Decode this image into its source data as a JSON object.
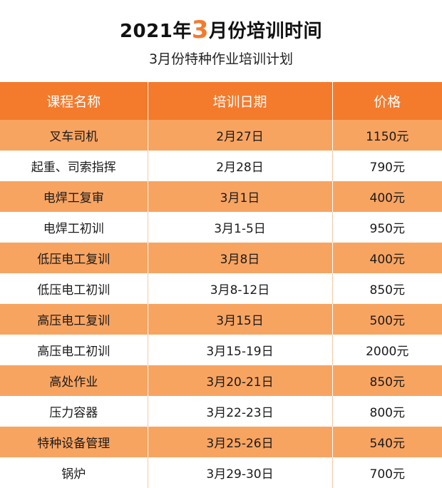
{
  "header": {
    "title_before": "2021年",
    "title_highlight": "3",
    "title_after": "月份培训时间",
    "subtitle": "3月份特种作业培训计划"
  },
  "colors": {
    "accent": "#f47a2c",
    "row_highlight": "#f8a461"
  },
  "table": {
    "columns": [
      "课程名称",
      "培训日期",
      "价格"
    ],
    "rows": [
      {
        "course": "叉车司机",
        "date": "2月27日",
        "price": "1150元"
      },
      {
        "course": "起重、司索指挥",
        "date": "2月28日",
        "price": "790元"
      },
      {
        "course": "电焊工复审",
        "date": "3月1日",
        "price": "400元"
      },
      {
        "course": "电焊工初训",
        "date": "3月1-5日",
        "price": "950元"
      },
      {
        "course": "低压电工复训",
        "date": "3月8日",
        "price": "400元"
      },
      {
        "course": "低压电工初训",
        "date": "3月8-12日",
        "price": "850元"
      },
      {
        "course": "高压电工复训",
        "date": "3月15日",
        "price": "500元"
      },
      {
        "course": "高压电工初训",
        "date": "3月15-19日",
        "price": "2000元"
      },
      {
        "course": "高处作业",
        "date": "3月20-21日",
        "price": "850元"
      },
      {
        "course": "压力容器",
        "date": "3月22-23日",
        "price": "800元"
      },
      {
        "course": "特种设备管理",
        "date": "3月25-26日",
        "price": "540元"
      },
      {
        "course": "锅炉",
        "date": "3月29-30日",
        "price": "700元"
      }
    ]
  }
}
